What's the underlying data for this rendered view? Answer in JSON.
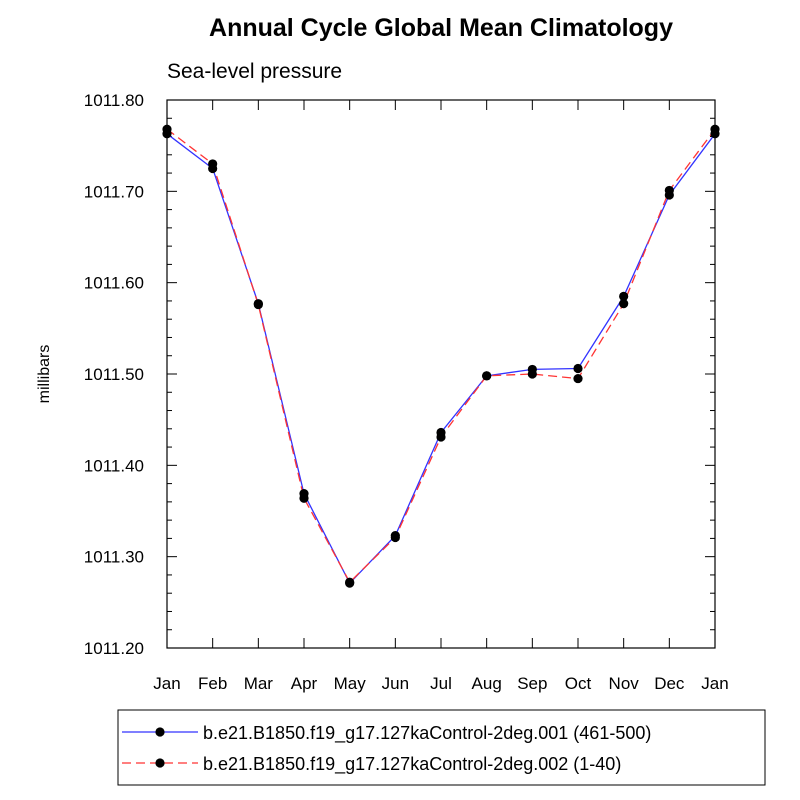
{
  "chart_data": {
    "type": "line",
    "title": "Annual Cycle Global Mean Climatology",
    "subtitle": "Sea-level pressure",
    "xlabel": "",
    "ylabel": "millibars",
    "categories": [
      "Jan",
      "Feb",
      "Mar",
      "Apr",
      "May",
      "Jun",
      "Jul",
      "Aug",
      "Sep",
      "Oct",
      "Nov",
      "Dec",
      "Jan"
    ],
    "ylim": [
      1011.2,
      1011.8
    ],
    "y_ticks": [
      "1011.20",
      "1011.30",
      "1011.40",
      "1011.50",
      "1011.60",
      "1011.70",
      "1011.80"
    ],
    "y_tick_values": [
      1011.2,
      1011.3,
      1011.4,
      1011.5,
      1011.6,
      1011.7,
      1011.8
    ],
    "grid": false,
    "legend_position": "bottom",
    "series": [
      {
        "name": "b.e21.B1850.f19_g17.127kaControl-2deg.001 (461-500)",
        "color": "#3333ff",
        "line_style": "solid",
        "marker": "filled-circle",
        "values": [
          1011.763,
          1011.725,
          1011.577,
          1011.369,
          1011.271,
          1011.323,
          1011.436,
          1011.498,
          1011.505,
          1011.506,
          1011.585,
          1011.696,
          1011.763
        ]
      },
      {
        "name": "b.e21.B1850.f19_g17.127kaControl-2deg.002 (1-40)",
        "color": "#ff3333",
        "line_style": "dashed",
        "marker": "filled-circle",
        "values": [
          1011.768,
          1011.73,
          1011.576,
          1011.364,
          1011.272,
          1011.321,
          1011.431,
          1011.498,
          1011.5,
          1011.495,
          1011.577,
          1011.701,
          1011.768
        ]
      }
    ]
  }
}
